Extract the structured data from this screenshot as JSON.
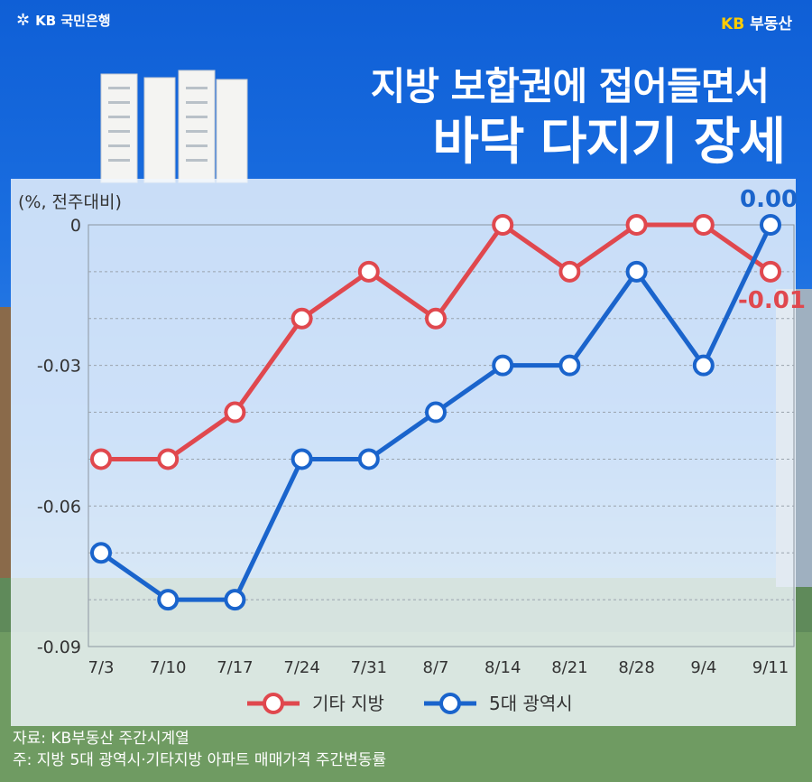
{
  "header": {
    "bank_logo": "KB 국민은행",
    "brand_kb": "KB",
    "brand_name": "부동산"
  },
  "title": {
    "line1": "지방 보합권에 접어들면서",
    "line2": "바닥 다지기 장세"
  },
  "chart_data": {
    "type": "line",
    "unit_label": "(%, 전주대비)",
    "categories": [
      "7/3",
      "7/10",
      "7/17",
      "7/24",
      "7/31",
      "8/7",
      "8/14",
      "8/21",
      "8/28",
      "9/4",
      "9/11"
    ],
    "series": [
      {
        "name": "기타 지방",
        "color": "#e0484e",
        "values": [
          -0.05,
          -0.05,
          -0.04,
          -0.02,
          -0.01,
          -0.02,
          0.0,
          -0.01,
          0.0,
          0.0,
          -0.01
        ]
      },
      {
        "name": "5대 광역시",
        "color": "#1a64cc",
        "values": [
          -0.07,
          -0.08,
          -0.08,
          -0.05,
          -0.05,
          -0.04,
          -0.03,
          -0.03,
          -0.01,
          -0.03,
          0.0
        ]
      }
    ],
    "yticks": [
      "0",
      "-0.03",
      "-0.06",
      "-0.09"
    ],
    "ylim": [
      -0.09,
      0
    ],
    "grid": true,
    "legend": "bottom",
    "end_labels": [
      "-0.01",
      "0.00"
    ]
  },
  "source": {
    "line1": "자료: KB부동산 주간시계열",
    "line2": "주: 지방 5대 광역시·기타지방 아파트 매매가격 주간변동률"
  }
}
